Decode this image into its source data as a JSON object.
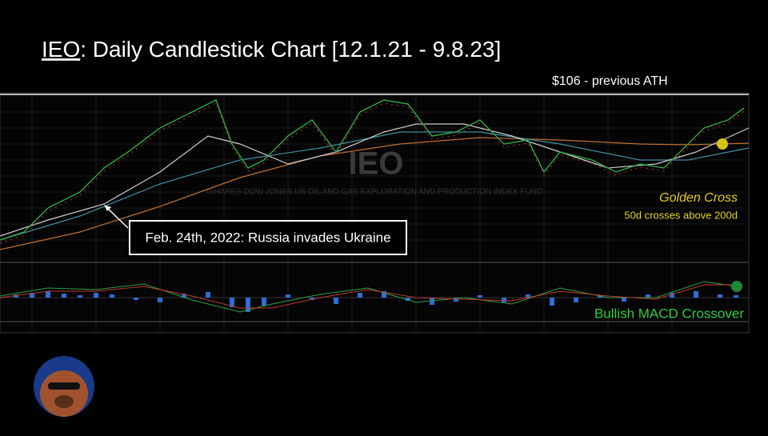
{
  "header": {
    "ticker": "IEO",
    "title": ": Daily Candlestick Chart [12.1.21 - 9.8.23]"
  },
  "annotations": {
    "ath": "$106 - previous ATH",
    "golden_cross": "Golden Cross",
    "golden_cross_note": "50d crosses above 200d",
    "event": "Feb. 24th, 2022: Russia invades Ukraine",
    "macd": "Bullish MACD Crossover"
  },
  "watermark": {
    "symbol": "IEO",
    "fund": "ISHARES DOW JONES US OIL AND GAS EXPLORATION AND PRODUCTION INDEX FUND"
  }
}
